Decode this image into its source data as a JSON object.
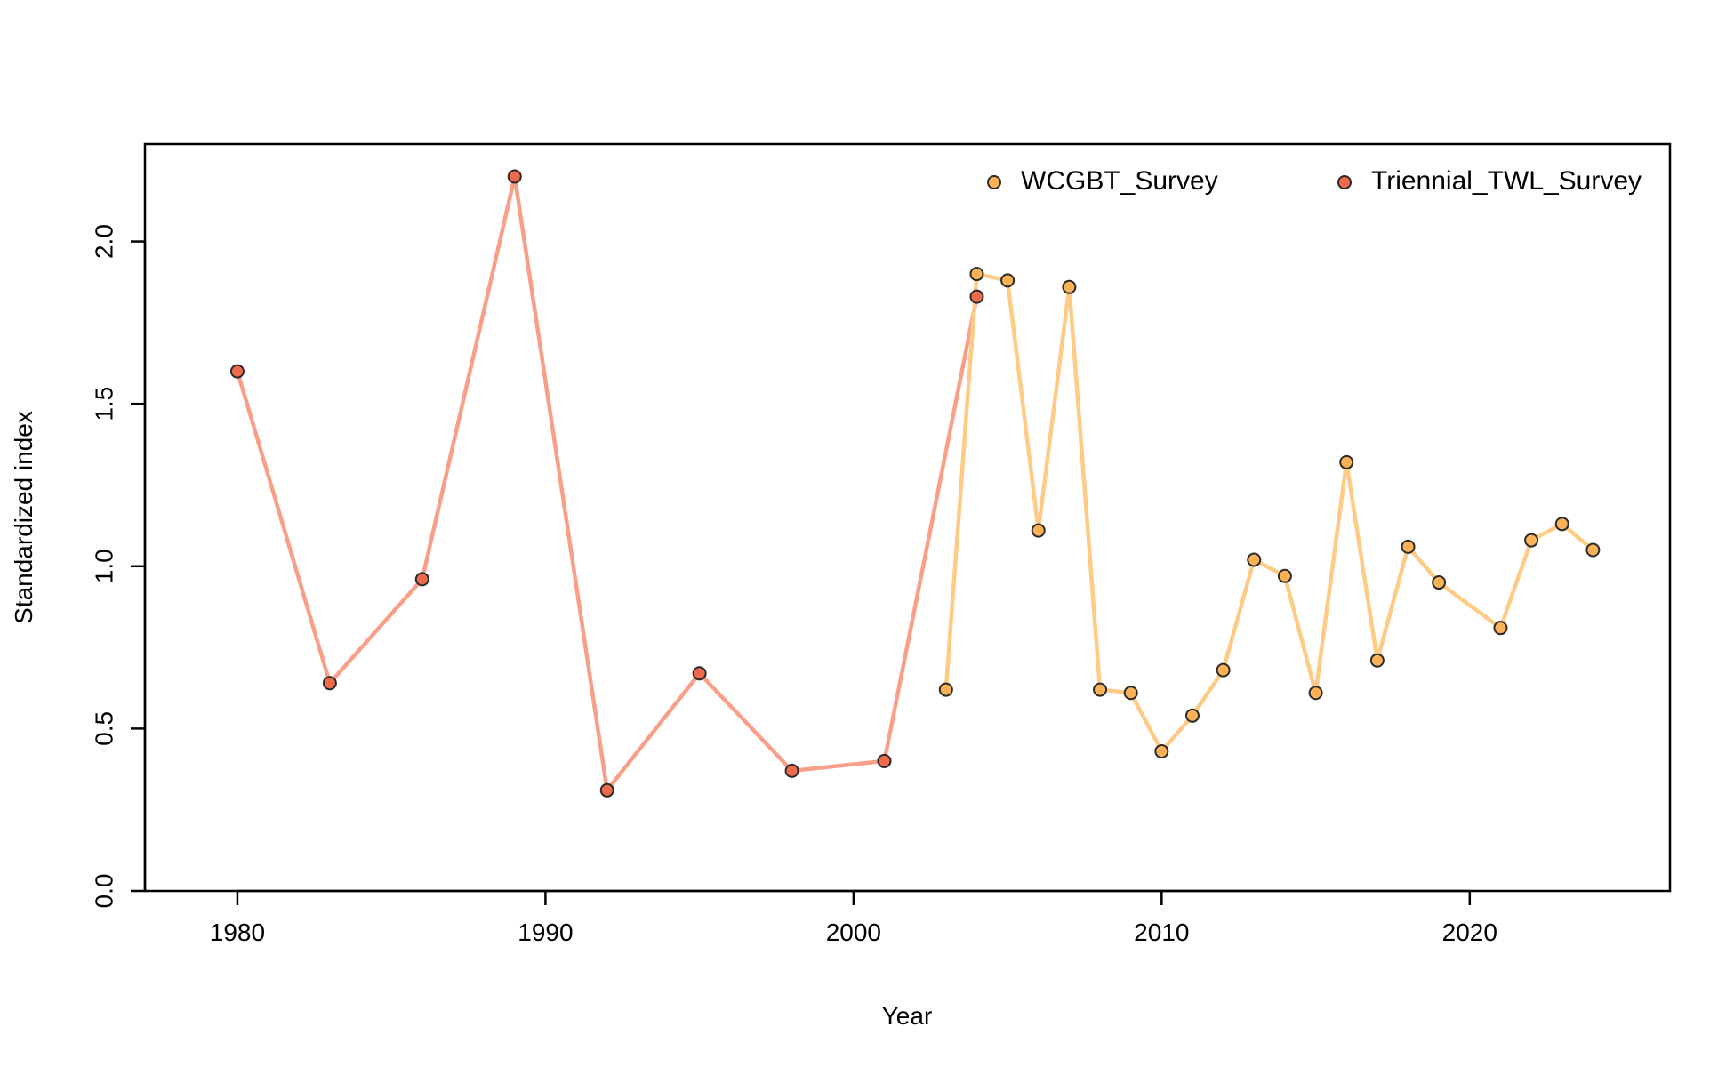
{
  "chart_data": {
    "type": "line",
    "title": "",
    "xlabel": "Year",
    "ylabel": "Standardized index",
    "xlim": [
      1977,
      2026.5
    ],
    "ylim": [
      0,
      2.3
    ],
    "x_ticks": [
      1980,
      1990,
      2000,
      2010,
      2020
    ],
    "y_ticks": [
      0,
      0.5,
      1,
      1.5,
      2
    ],
    "x_tick_labels": [
      "1980",
      "1990",
      "2000",
      "2010",
      "2020"
    ],
    "y_tick_labels": [
      "0.0",
      "0.5",
      "1.0",
      "1.5",
      "2.0"
    ],
    "grid": false,
    "legend_position": "top-right",
    "series": [
      {
        "name": "Triennial_TWL_Survey",
        "line_color": "#F89F88",
        "point_color": "#EE6A4B",
        "points": [
          {
            "x": 1980,
            "y": 1.6
          },
          {
            "x": 1983,
            "y": 0.64
          },
          {
            "x": 1986,
            "y": 0.96
          },
          {
            "x": 1989,
            "y": 2.2
          },
          {
            "x": 1992,
            "y": 0.31
          },
          {
            "x": 1995,
            "y": 0.67
          },
          {
            "x": 1998,
            "y": 0.37
          },
          {
            "x": 2001,
            "y": 0.4
          },
          {
            "x": 2004,
            "y": 1.83
          }
        ]
      },
      {
        "name": "WCGBT_Survey",
        "line_color": "#FDCB86",
        "point_color": "#FCB154",
        "points": [
          {
            "x": 2003,
            "y": 0.62
          },
          {
            "x": 2004,
            "y": 1.9
          },
          {
            "x": 2005,
            "y": 1.88
          },
          {
            "x": 2006,
            "y": 1.11
          },
          {
            "x": 2007,
            "y": 1.86
          },
          {
            "x": 2008,
            "y": 0.62
          },
          {
            "x": 2009,
            "y": 0.61
          },
          {
            "x": 2010,
            "y": 0.43
          },
          {
            "x": 2011,
            "y": 0.54
          },
          {
            "x": 2012,
            "y": 0.68
          },
          {
            "x": 2013,
            "y": 1.02
          },
          {
            "x": 2014,
            "y": 0.97
          },
          {
            "x": 2015,
            "y": 0.61
          },
          {
            "x": 2016,
            "y": 1.32
          },
          {
            "x": 2017,
            "y": 0.71
          },
          {
            "x": 2018,
            "y": 1.06
          },
          {
            "x": 2019,
            "y": 0.95
          },
          {
            "x": 2021,
            "y": 0.81
          },
          {
            "x": 2022,
            "y": 1.08
          },
          {
            "x": 2023,
            "y": 1.13
          },
          {
            "x": 2024,
            "y": 1.05
          }
        ]
      }
    ],
    "legend": [
      {
        "label": "WCGBT_Survey",
        "color": "#FCB154"
      },
      {
        "label": "Triennial_TWL_Survey",
        "color": "#EE6A4B"
      }
    ]
  }
}
